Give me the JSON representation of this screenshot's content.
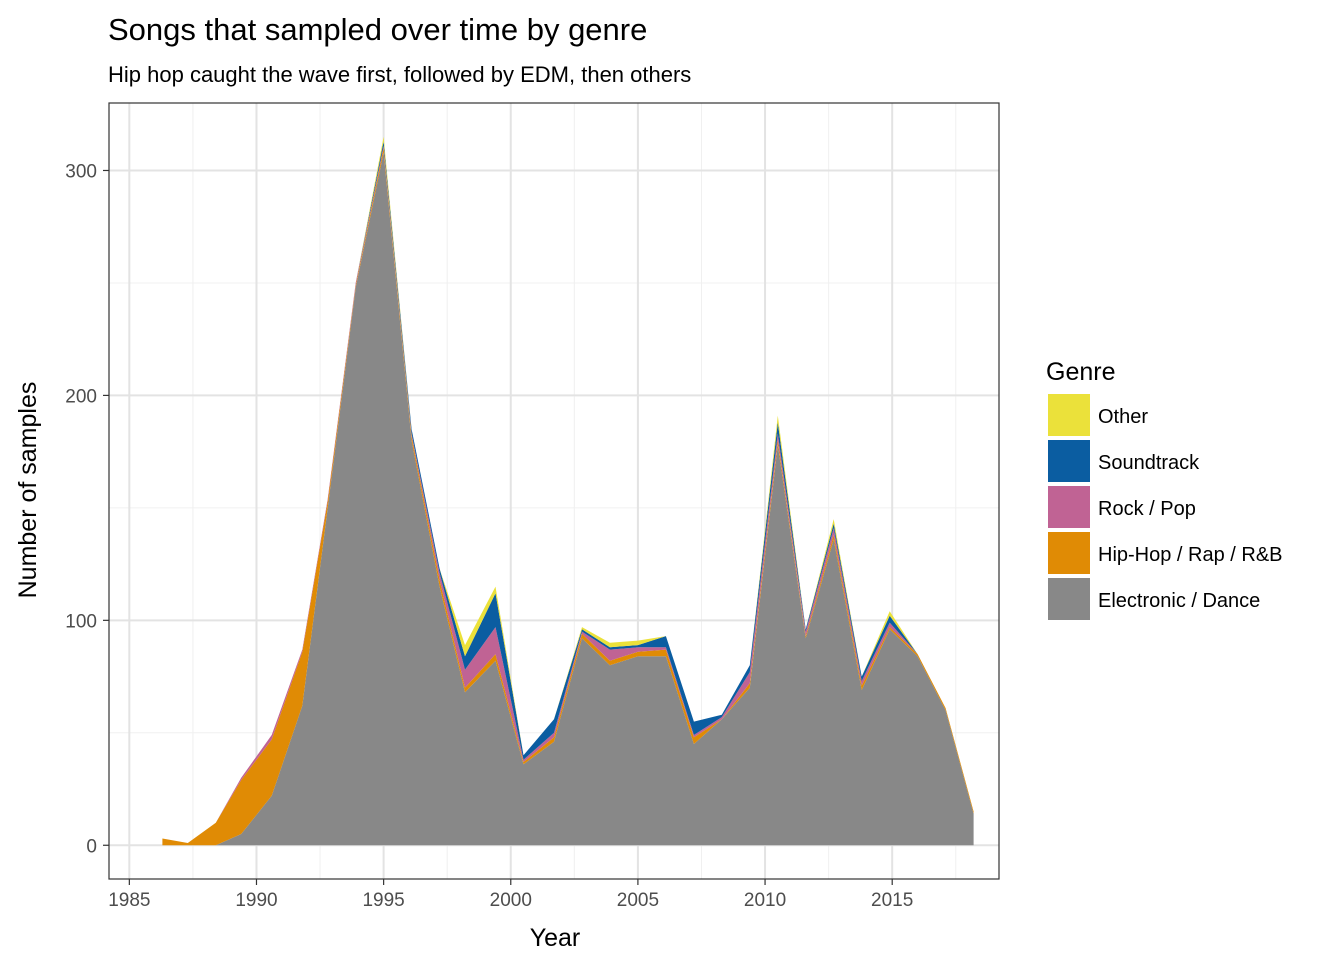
{
  "chart_data": {
    "type": "area",
    "title": "Songs that sampled over time by genre",
    "subtitle": "Hip hop caught the wave first, followed by EDM, then others",
    "xlabel": "Year",
    "ylabel": "Number of samples",
    "xlim": [
      1984.2,
      2019.2
    ],
    "ylim": [
      -15,
      330
    ],
    "x_ticks": [
      1985,
      1990,
      1995,
      2000,
      2005,
      2010,
      2015
    ],
    "y_ticks": [
      0,
      100,
      200,
      300
    ],
    "grid": true,
    "legend_title": "Genre",
    "legend_position": "right",
    "stacked": true,
    "x": [
      1986.3,
      1987.3,
      1988.4,
      1989.4,
      1990.6,
      1991.8,
      1992.8,
      1993.9,
      1995.0,
      1996.1,
      1997.2,
      1998.2,
      1999.4,
      2000.5,
      2001.7,
      2002.8,
      2003.9,
      2005.0,
      2006.1,
      2007.2,
      2008.3,
      2009.4,
      2010.5,
      2011.6,
      2012.7,
      2013.8,
      2014.9,
      2016.0,
      2017.1,
      2018.2
    ],
    "series": [
      {
        "name": "Electronic / Dance",
        "color": "#888888",
        "values": [
          0,
          0,
          0,
          5,
          22,
          62,
          150,
          248,
          308,
          180,
          115,
          68,
          82,
          36,
          46,
          92,
          80,
          84,
          84,
          45,
          56,
          70,
          178,
          92,
          136,
          69,
          96,
          84,
          60,
          14
        ]
      },
      {
        "name": "Hip-Hop / Rap / R&B",
        "color": "#E08B05",
        "values": [
          3,
          1,
          10,
          24,
          25,
          24,
          3,
          1,
          2,
          2,
          3,
          2,
          3,
          1,
          2,
          2,
          2,
          2,
          3,
          3,
          0,
          2,
          2,
          1,
          2,
          2,
          1,
          1,
          1,
          1
        ]
      },
      {
        "name": "Rock / Pop",
        "color": "#C06394",
        "values": [
          0,
          0,
          0,
          1,
          2,
          1,
          1,
          1,
          1,
          1,
          3,
          8,
          12,
          1,
          2,
          1,
          5,
          2,
          1,
          1,
          1,
          5,
          3,
          2,
          3,
          2,
          2,
          0,
          0,
          0
        ]
      },
      {
        "name": "Soundtrack",
        "color": "#0B5DA1",
        "values": [
          0,
          0,
          0,
          0,
          0,
          0,
          0,
          0,
          2,
          2,
          2,
          6,
          15,
          2,
          6,
          1,
          1,
          1,
          5,
          6,
          1,
          3,
          5,
          1,
          2,
          2,
          3,
          0,
          0,
          0
        ]
      },
      {
        "name": "Other",
        "color": "#EBE13A",
        "values": [
          0,
          0,
          0,
          0,
          0,
          0,
          0,
          0,
          2,
          0,
          0,
          5,
          3,
          0,
          0,
          1,
          2,
          2,
          0,
          0,
          0,
          0,
          3,
          0,
          2,
          0,
          2,
          0,
          0,
          0
        ]
      }
    ],
    "legend_order": [
      "Other",
      "Soundtrack",
      "Rock / Pop",
      "Hip-Hop / Rap / R&B",
      "Electronic / Dance"
    ]
  }
}
